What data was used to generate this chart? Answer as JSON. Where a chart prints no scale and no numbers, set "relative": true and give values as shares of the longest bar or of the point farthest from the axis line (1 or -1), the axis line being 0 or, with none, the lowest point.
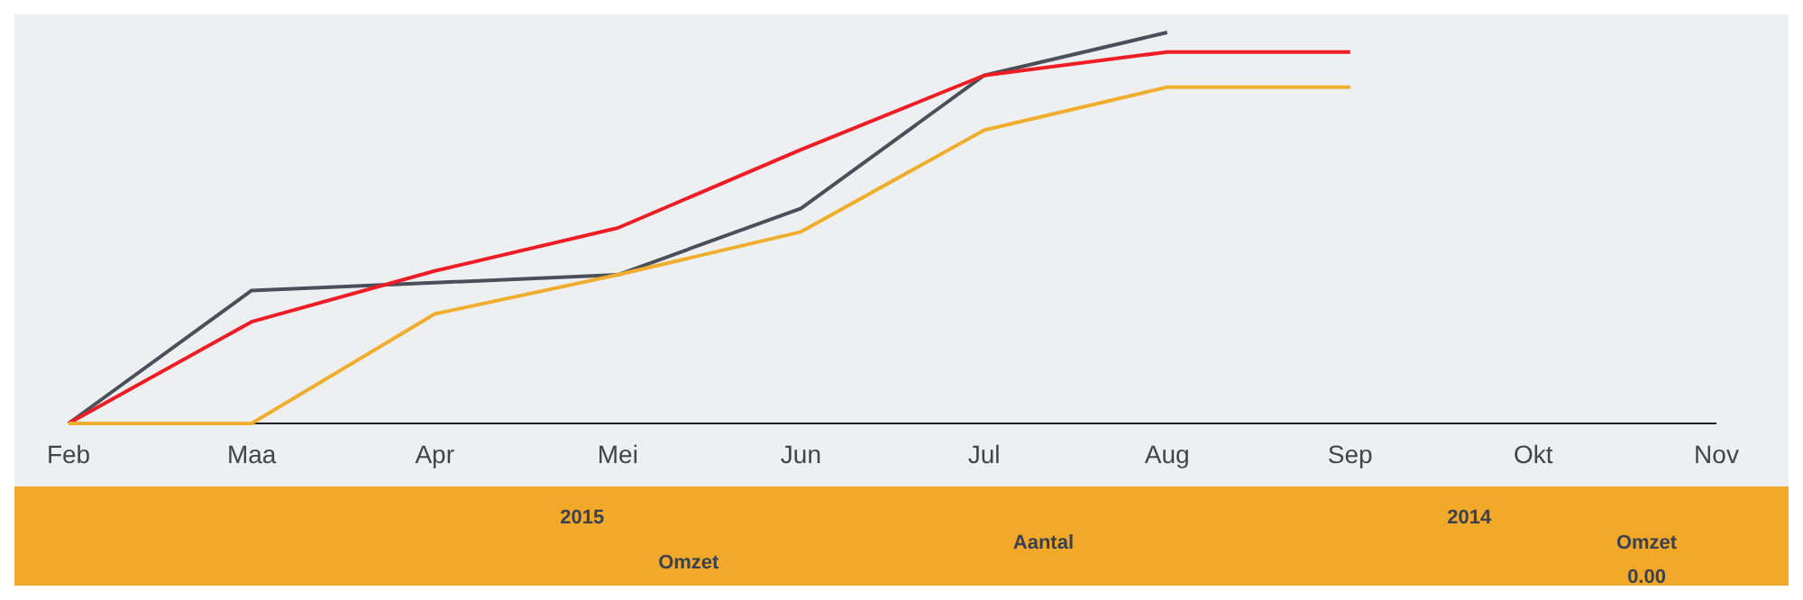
{
  "chart_data": {
    "type": "line",
    "relative": true,
    "categories": [
      "Feb",
      "Maa",
      "Apr",
      "Mei",
      "Jun",
      "Jul",
      "Aug",
      "Sep",
      "Okt",
      "Nov"
    ],
    "series": [
      {
        "color": "#4a4f5a",
        "values": [
          0,
          0.34,
          0.36,
          0.38,
          0.55,
          0.89,
          1,
          null,
          null,
          null
        ]
      },
      {
        "color": "#ee1c25",
        "values": [
          0,
          0.26,
          0.39,
          0.5,
          0.7,
          0.89,
          0.95,
          0.95,
          null,
          null
        ]
      },
      {
        "color": "#f0ae2e",
        "values": [
          0,
          0,
          0.28,
          0.38,
          0.49,
          0.75,
          0.86,
          0.86,
          null,
          null
        ]
      }
    ],
    "annotations": [
      "2015",
      "Omzet",
      "Aantal",
      "2014",
      "Omzet",
      "0.00"
    ]
  }
}
